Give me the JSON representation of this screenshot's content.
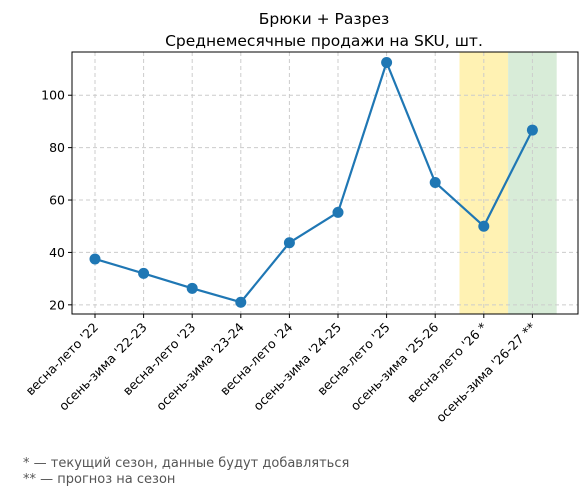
{
  "chart_data": {
    "type": "line",
    "title": "Брюки + Разрез",
    "subtitle": "Среднемесячные продажи на SKU, шт.",
    "xlabel": "",
    "ylabel": "",
    "categories": [
      "весна-лето '22",
      "осень-зима '22-23",
      "весна-лето '23",
      "осень-зима '23-24",
      "весна-лето '24",
      "осень-зима '24-25",
      "весна-лето '25",
      "осень-зима '25-26",
      "весна-лето '26 *",
      "осень-зима '26-27 **"
    ],
    "series": [
      {
        "values": [
          37.5,
          32,
          26.3,
          21,
          43.7,
          55.3,
          112.5,
          66.7,
          50,
          86.7
        ],
        "color": "#1f77b4"
      }
    ],
    "ylim": [
      16.5,
      116.5
    ],
    "yticks": [
      20,
      40,
      60,
      80,
      100
    ],
    "grid": true,
    "highlights": [
      {
        "category_index": 8,
        "meaning": "current",
        "color": "#fff2b3"
      },
      {
        "category_index": 9,
        "meaning": "forecast",
        "color": "#d8ecd8"
      }
    ]
  },
  "footnotes": {
    "current": "* — текущий сезон, данные будут добавляться",
    "forecast": "** — прогноз на сезон"
  }
}
